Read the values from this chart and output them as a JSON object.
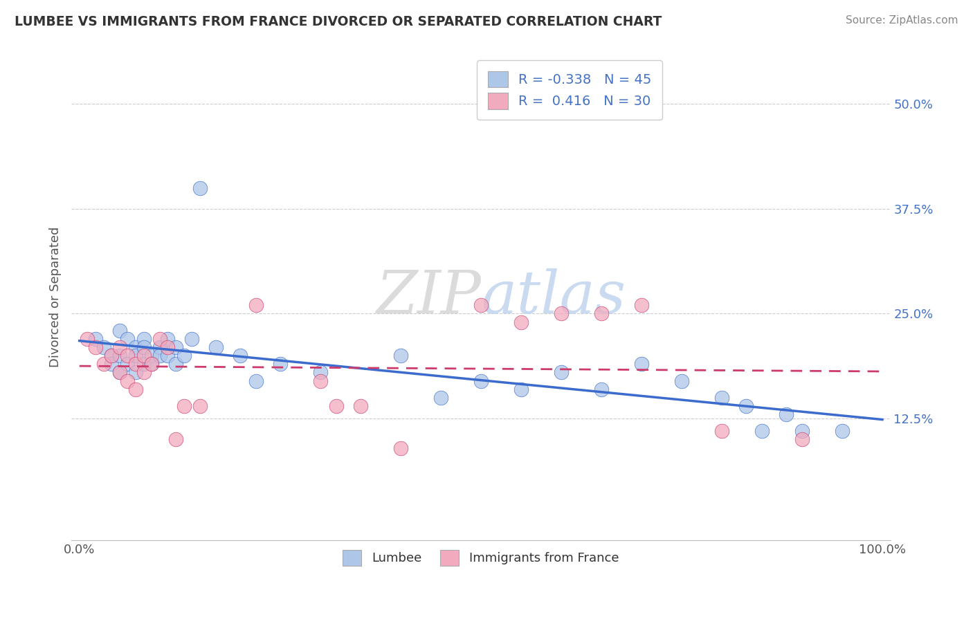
{
  "title": "LUMBEE VS IMMIGRANTS FROM FRANCE DIVORCED OR SEPARATED CORRELATION CHART",
  "source_text": "Source: ZipAtlas.com",
  "ylabel": "Divorced or Separated",
  "xlabel_lumbee": "Lumbee",
  "xlabel_france": "Immigrants from France",
  "lumbee_R": -0.338,
  "lumbee_N": 45,
  "france_R": 0.416,
  "france_N": 30,
  "lumbee_color": "#aec6e8",
  "france_color": "#f2aabe",
  "lumbee_line_color": "#3b6bcc",
  "france_line_color": "#cc3b6b",
  "watermark_zip": "ZIP",
  "watermark_atlas": "atlas",
  "y_ticks": [
    0.125,
    0.25,
    0.375,
    0.5
  ],
  "y_tick_labels": [
    "12.5%",
    "25.0%",
    "37.5%",
    "50.0%"
  ],
  "lumbee_x": [
    0.02,
    0.03,
    0.04,
    0.04,
    0.05,
    0.05,
    0.05,
    0.06,
    0.06,
    0.07,
    0.07,
    0.07,
    0.08,
    0.08,
    0.08,
    0.09,
    0.09,
    0.1,
    0.1,
    0.11,
    0.11,
    0.12,
    0.12,
    0.13,
    0.14,
    0.15,
    0.17,
    0.2,
    0.22,
    0.25,
    0.3,
    0.4,
    0.45,
    0.5,
    0.55,
    0.6,
    0.65,
    0.7,
    0.75,
    0.8,
    0.83,
    0.85,
    0.88,
    0.9,
    0.95
  ],
  "lumbee_y": [
    0.22,
    0.21,
    0.2,
    0.19,
    0.23,
    0.2,
    0.18,
    0.22,
    0.19,
    0.21,
    0.2,
    0.18,
    0.22,
    0.21,
    0.19,
    0.2,
    0.19,
    0.21,
    0.2,
    0.22,
    0.2,
    0.21,
    0.19,
    0.2,
    0.22,
    0.4,
    0.21,
    0.2,
    0.17,
    0.19,
    0.18,
    0.2,
    0.15,
    0.17,
    0.16,
    0.18,
    0.16,
    0.19,
    0.17,
    0.15,
    0.14,
    0.11,
    0.13,
    0.11,
    0.11
  ],
  "france_x": [
    0.01,
    0.02,
    0.03,
    0.04,
    0.05,
    0.05,
    0.06,
    0.06,
    0.07,
    0.07,
    0.08,
    0.08,
    0.09,
    0.1,
    0.11,
    0.12,
    0.13,
    0.15,
    0.22,
    0.3,
    0.32,
    0.35,
    0.4,
    0.5,
    0.55,
    0.6,
    0.65,
    0.7,
    0.8,
    0.9
  ],
  "france_y": [
    0.22,
    0.21,
    0.19,
    0.2,
    0.21,
    0.18,
    0.2,
    0.17,
    0.19,
    0.16,
    0.2,
    0.18,
    0.19,
    0.22,
    0.21,
    0.1,
    0.14,
    0.14,
    0.26,
    0.17,
    0.14,
    0.14,
    0.09,
    0.26,
    0.24,
    0.25,
    0.25,
    0.26,
    0.11,
    0.1
  ]
}
